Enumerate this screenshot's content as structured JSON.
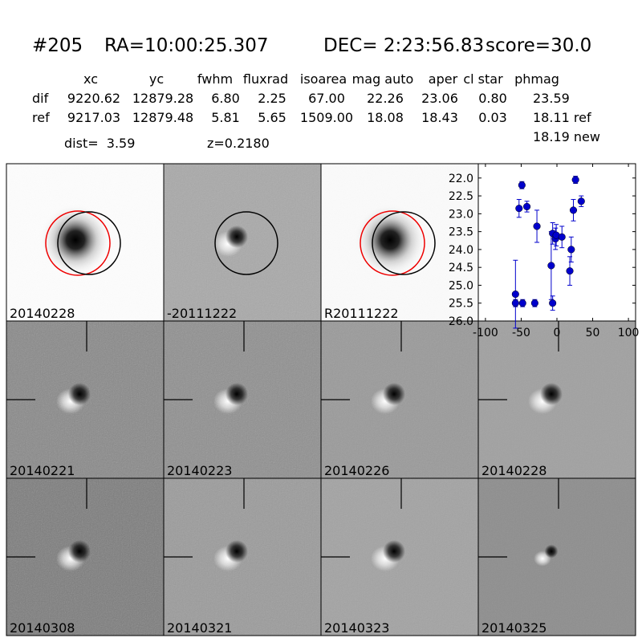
{
  "header": {
    "id": "#205",
    "ra": "RA=10:00:25.307",
    "dec": "DEC= 2:23:56.83",
    "score": "score=30.0"
  },
  "table": {
    "columns": [
      "xc",
      "yc",
      "fwhm",
      "fluxrad",
      "isoarea",
      "mag auto",
      "aper",
      "cl star",
      "phmag"
    ],
    "rows": [
      {
        "label": "dif",
        "cells": [
          "9220.62",
          "12879.28",
          "6.80",
          "2.25",
          "67.00",
          "22.26",
          "23.06",
          "0.80",
          "23.59"
        ]
      },
      {
        "label": "ref",
        "cells": [
          "9217.03",
          "12879.48",
          "5.81",
          "5.65",
          "1509.00",
          "18.08",
          "18.43",
          "0.03",
          "18.11 ref"
        ]
      }
    ],
    "extra": "18.19 new"
  },
  "dist": "dist=  3.59",
  "z": "z=0.2180",
  "tiles": [
    {
      "label": "20140228",
      "color": "#000000"
    },
    {
      "label": "-20111222",
      "color": "#000000"
    },
    {
      "label": "R20111222",
      "color": "#000000"
    },
    {
      "label": "20140221",
      "color": "#000000"
    },
    {
      "label": "20140223",
      "color": "#000000"
    },
    {
      "label": "20140226",
      "color": "#000000"
    },
    {
      "label": "20140228",
      "color": "#ff0000"
    },
    {
      "label": "20140308",
      "color": "#000000"
    },
    {
      "label": "20140321",
      "color": "#000000"
    },
    {
      "label": "20140323",
      "color": "#000000"
    },
    {
      "label": "20140325",
      "color": "#000000"
    }
  ],
  "chart_data": {
    "type": "errorbar",
    "color": "#0000cc",
    "x": [
      -58,
      -58,
      -48,
      -31,
      -53,
      -49,
      -42,
      -28,
      -8,
      -6,
      -6,
      -2,
      -1,
      7,
      18,
      20,
      23,
      26,
      34
    ],
    "values": [
      25.25,
      25.5,
      25.5,
      25.5,
      22.85,
      22.2,
      22.8,
      23.35,
      24.45,
      23.55,
      25.5,
      23.7,
      23.6,
      23.65,
      24.6,
      24.0,
      22.9,
      22.05,
      22.65
    ],
    "errors": [
      0.95,
      0.1,
      0.1,
      0.1,
      0.25,
      0.1,
      0.15,
      0.45,
      0.95,
      0.3,
      0.2,
      0.3,
      0.3,
      0.3,
      0.4,
      0.35,
      0.3,
      0.1,
      0.15
    ],
    "xlim": [
      -110,
      110
    ],
    "ylim": [
      21.6,
      26.0
    ],
    "y_inverted": true,
    "xticks": [
      -100,
      -50,
      0,
      50,
      100
    ],
    "yticks": [
      {
        "value": 22,
        "label": "22.0"
      },
      {
        "value": 22.5,
        "label": "22.5"
      },
      {
        "value": 23,
        "label": "23.0"
      },
      {
        "value": 23.5,
        "label": "23.5"
      },
      {
        "value": 24,
        "label": "24.0"
      },
      {
        "value": 24.5,
        "label": "24.5"
      },
      {
        "value": 25,
        "label": "25.0"
      },
      {
        "value": 25.5,
        "label": "25.5"
      },
      {
        "value": 26,
        "label": "26.0"
      }
    ]
  }
}
